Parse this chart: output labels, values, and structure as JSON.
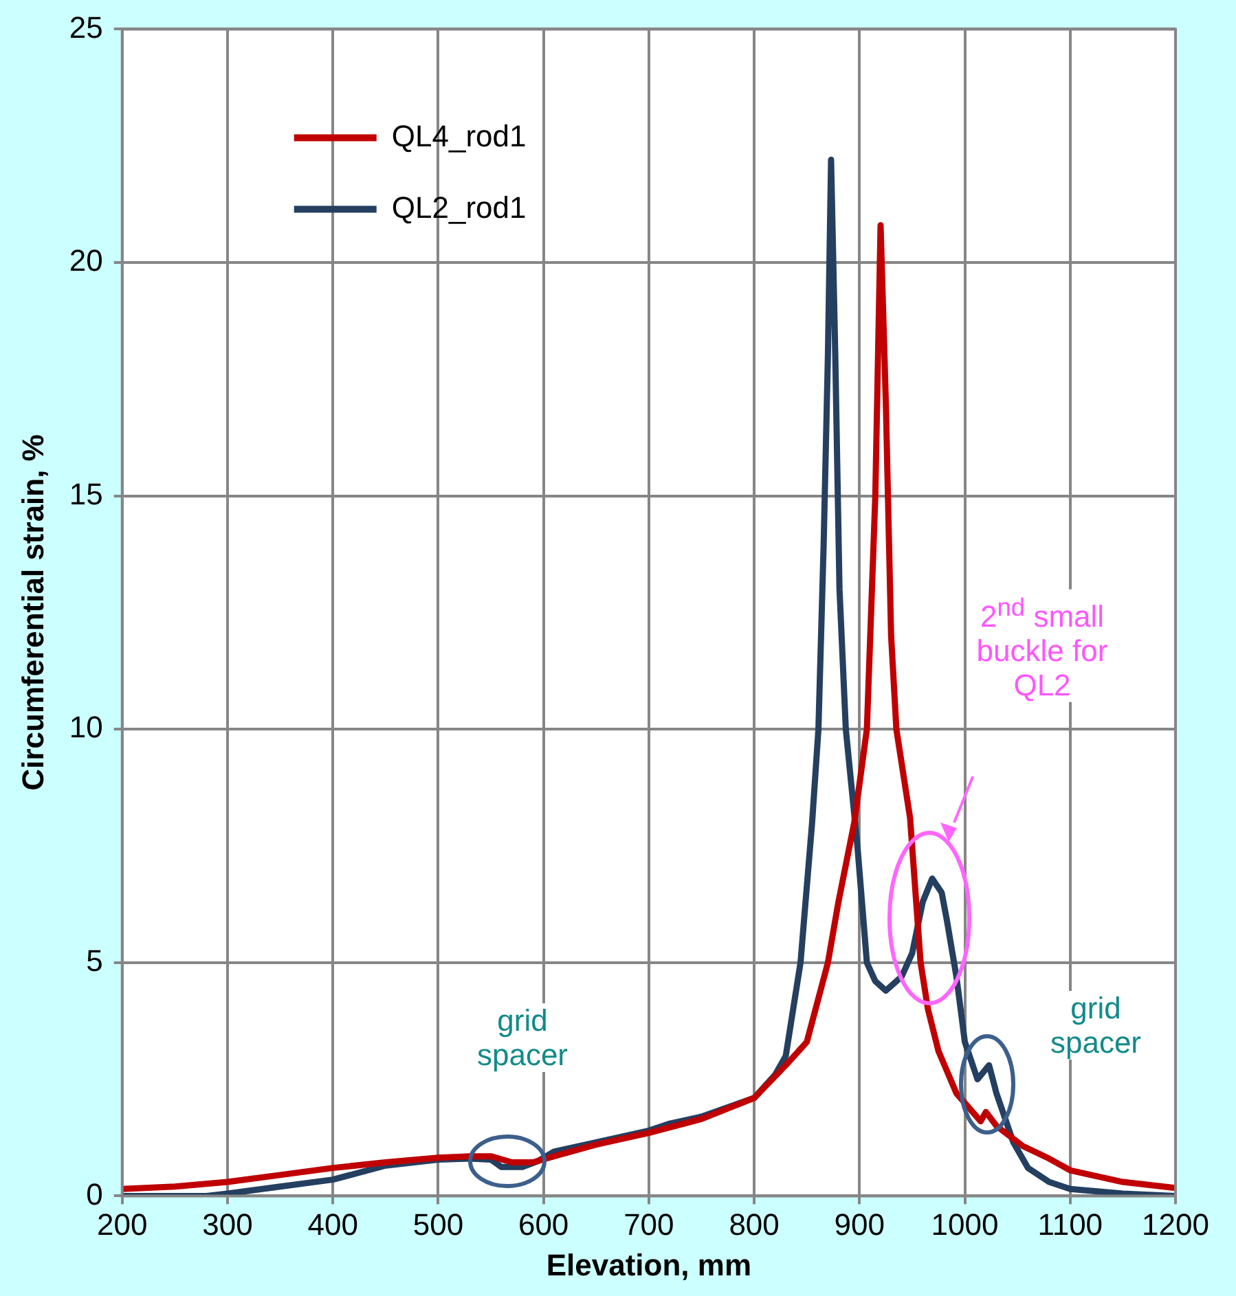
{
  "chart_data": {
    "type": "line",
    "xlabel": "Elevation, mm",
    "ylabel": "Circumferential strain, %",
    "xlim": [
      200,
      1200
    ],
    "xticks": [
      200,
      300,
      400,
      500,
      600,
      700,
      800,
      900,
      1000,
      1100,
      1200
    ],
    "ylim": [
      0,
      25
    ],
    "yticks": [
      0,
      5,
      10,
      15,
      20,
      25
    ],
    "grid": true,
    "legend": "top left",
    "marker": "none",
    "line_style": "solid",
    "series": [
      {
        "name": "QL4_rod1",
        "color": "#c00000",
        "x": [
          200,
          250,
          300,
          350,
          400,
          450,
          500,
          530,
          550,
          570,
          590,
          610,
          650,
          700,
          750,
          800,
          830,
          850,
          870,
          880,
          895,
          907,
          915,
          920,
          925,
          930,
          935,
          948,
          958,
          965,
          975,
          992,
          1015,
          1020,
          1030,
          1055,
          1080,
          1100,
          1150,
          1200
        ],
        "values": [
          0.15,
          0.2,
          0.3,
          0.45,
          0.6,
          0.72,
          0.82,
          0.85,
          0.85,
          0.72,
          0.72,
          0.85,
          1.1,
          1.35,
          1.65,
          2.1,
          2.8,
          3.3,
          5,
          6.3,
          8,
          10,
          15,
          20.8,
          17,
          12,
          10,
          8.1,
          5,
          4,
          3.1,
          2.2,
          1.6,
          1.8,
          1.5,
          1.07,
          0.8,
          0.55,
          0.3,
          0.17
        ]
      },
      {
        "name": "QL2_rod1",
        "color": "#243f60",
        "x": [
          200,
          280,
          300,
          350,
          400,
          450,
          500,
          530,
          550,
          560,
          580,
          595,
          610,
          650,
          700,
          720,
          750,
          800,
          820,
          830,
          844,
          855,
          861,
          866,
          870,
          873,
          877,
          881,
          887,
          898,
          907,
          915,
          925,
          940,
          950,
          960,
          969,
          978,
          983,
          992,
          1000,
          1012,
          1023,
          1030,
          1046,
          1060,
          1080,
          1100,
          1150,
          1200
        ],
        "values": [
          0,
          0,
          0.05,
          0.2,
          0.35,
          0.65,
          0.78,
          0.8,
          0.78,
          0.62,
          0.62,
          0.75,
          0.95,
          1.15,
          1.4,
          1.55,
          1.7,
          2.1,
          2.6,
          3.0,
          5,
          8,
          10,
          14,
          18,
          22.2,
          18,
          13,
          10,
          7.5,
          5,
          4.6,
          4.4,
          4.7,
          5.2,
          6.3,
          6.8,
          6.5,
          5.9,
          4.7,
          3.3,
          2.5,
          2.8,
          2.2,
          1.15,
          0.6,
          0.3,
          0.15,
          0.05,
          0
        ]
      }
    ],
    "annotations": [
      "grid spacer",
      "grid spacer",
      "2$^{nd}$ small buckle for QL2"
    ]
  }
}
